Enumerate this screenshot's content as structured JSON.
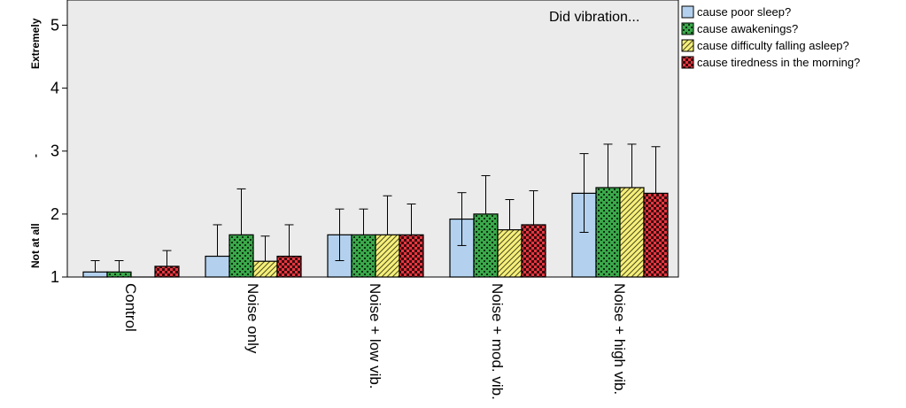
{
  "chart_data": {
    "type": "bar",
    "annotation": "Did vibration...",
    "categories": [
      "Control",
      "Noise only",
      "Noise + low vib.",
      "Noise + mod. vib.",
      "Noise + high vib."
    ],
    "ylim": [
      1,
      5.4
    ],
    "yticks": [
      1,
      2,
      3,
      4,
      5
    ],
    "ylabel_top": "Extremely",
    "ylabel_mid": "-",
    "ylabel_bottom": "Not at all",
    "legend_position": "right",
    "series": [
      {
        "name": "cause poor sleep?",
        "color": "#b3d1ee",
        "pattern": "solid",
        "values": [
          1.08,
          1.33,
          1.67,
          1.92,
          2.33
        ],
        "err_upper": [
          1.26,
          1.83,
          2.08,
          2.34,
          2.96
        ],
        "err_lower": [
          null,
          null,
          1.26,
          1.5,
          1.71
        ]
      },
      {
        "name": "cause awakenings?",
        "color": "#3aa84a",
        "pattern": "cross",
        "values": [
          1.08,
          1.67,
          1.67,
          2.0,
          2.42
        ],
        "err_upper": [
          1.26,
          2.4,
          2.08,
          2.61,
          3.11
        ],
        "err_lower": [
          null,
          null,
          null,
          null,
          null
        ]
      },
      {
        "name": "cause difficulty falling asleep?",
        "color": "#f6f07a",
        "pattern": "diag",
        "values": [
          1.0,
          1.25,
          1.67,
          1.75,
          2.42
        ],
        "err_upper": [
          1.0,
          1.65,
          2.29,
          2.23,
          3.11
        ],
        "err_lower": [
          null,
          null,
          null,
          null,
          null
        ]
      },
      {
        "name": "cause tiredness in the morning?",
        "color": "#e8353f",
        "pattern": "check",
        "values": [
          1.17,
          1.33,
          1.67,
          1.83,
          2.33
        ],
        "err_upper": [
          1.42,
          1.83,
          2.16,
          2.37,
          3.07
        ],
        "err_lower": [
          null,
          null,
          null,
          null,
          null
        ]
      }
    ]
  }
}
